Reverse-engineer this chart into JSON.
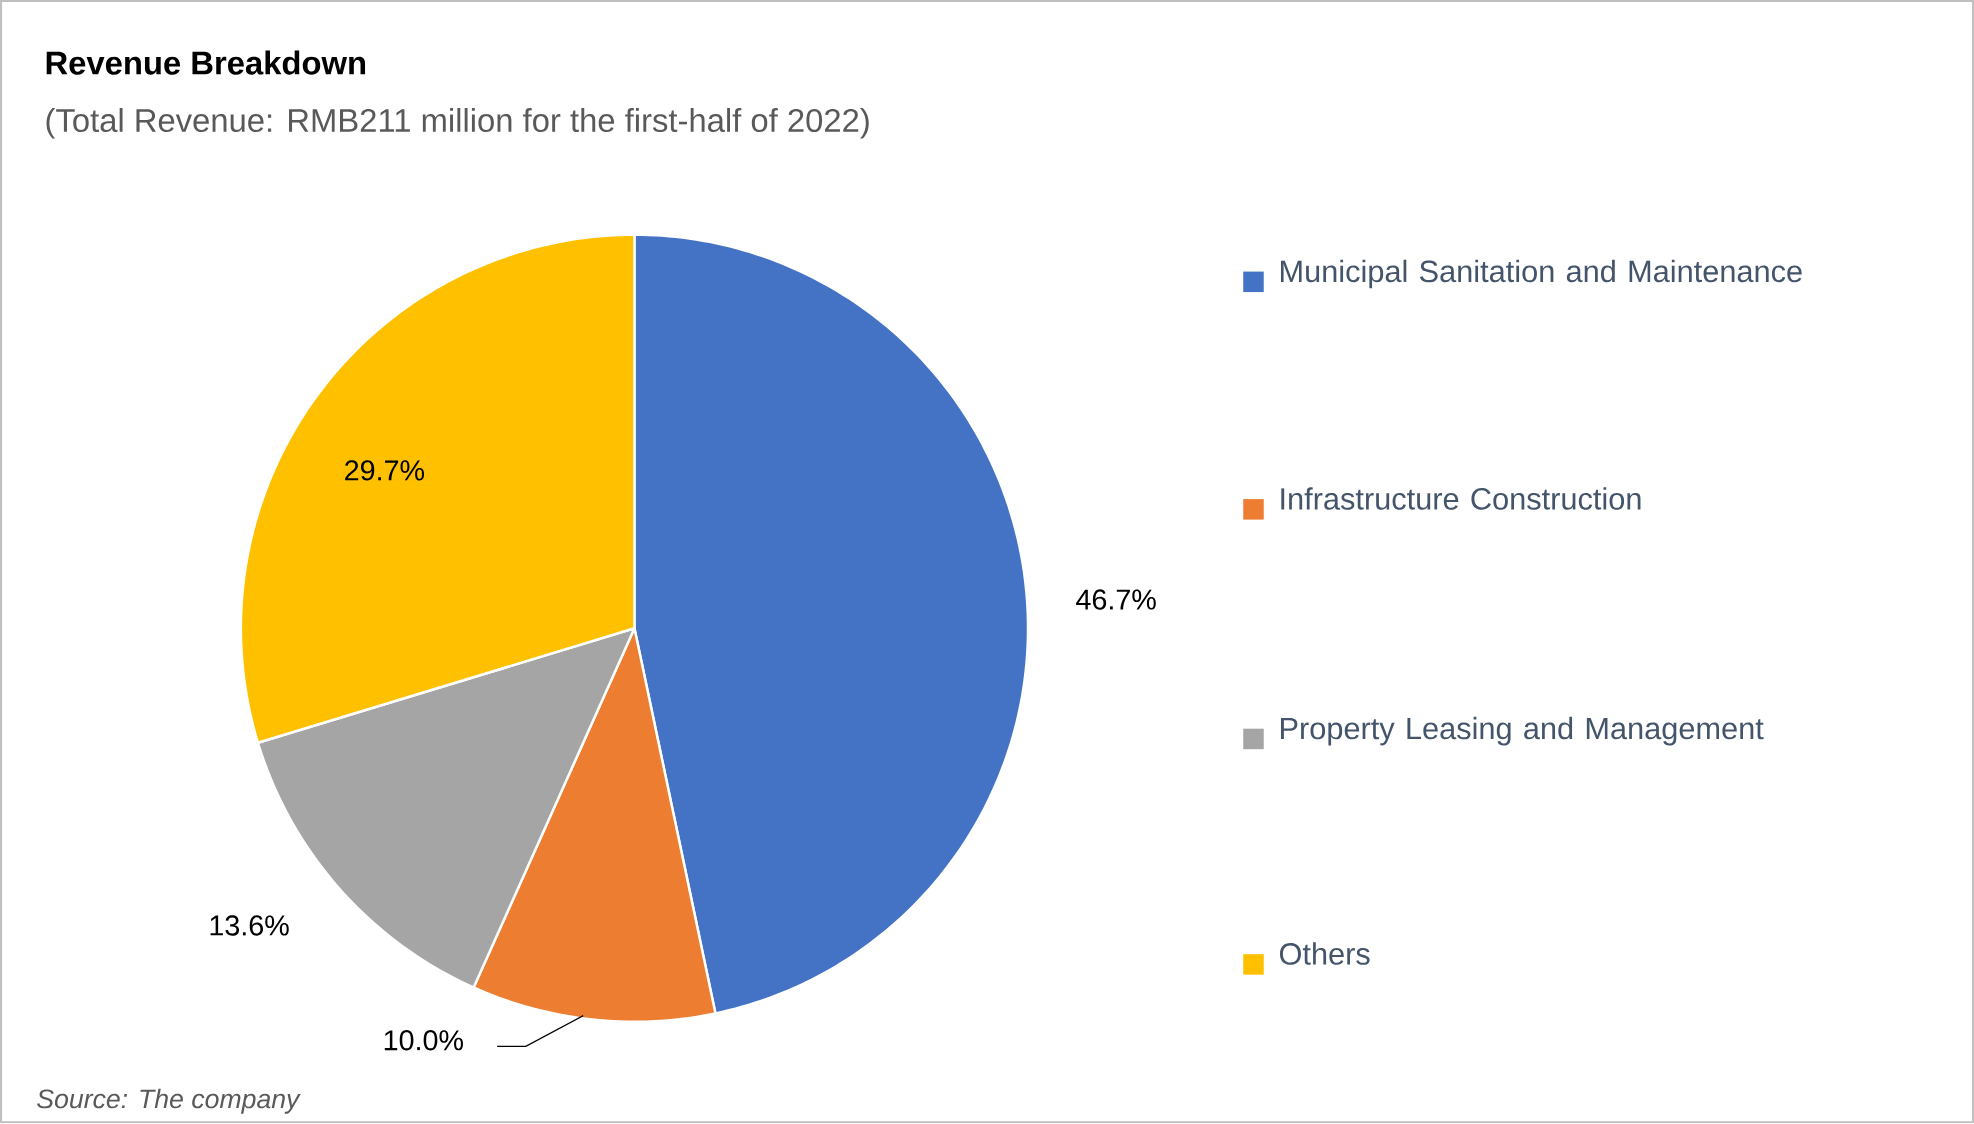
{
  "chart_data": {
    "type": "pie",
    "title": "Revenue Breakdown",
    "subtitle": "(Total Revenue: RMB211 million for the first-half of 2022)",
    "categories": [
      "Municipal Sanitation and Maintenance",
      "Infrastructure Construction",
      "Property Leasing and Management",
      "Others"
    ],
    "values": [
      46.7,
      10.0,
      13.6,
      29.7
    ],
    "value_labels": [
      "46.7%",
      "10.0%",
      "13.6%",
      "29.7%"
    ],
    "colors": [
      "#4472c4",
      "#ed7d31",
      "#a5a5a5",
      "#ffc000"
    ],
    "legend": "right",
    "annotations": [
      "Source: The company"
    ]
  }
}
